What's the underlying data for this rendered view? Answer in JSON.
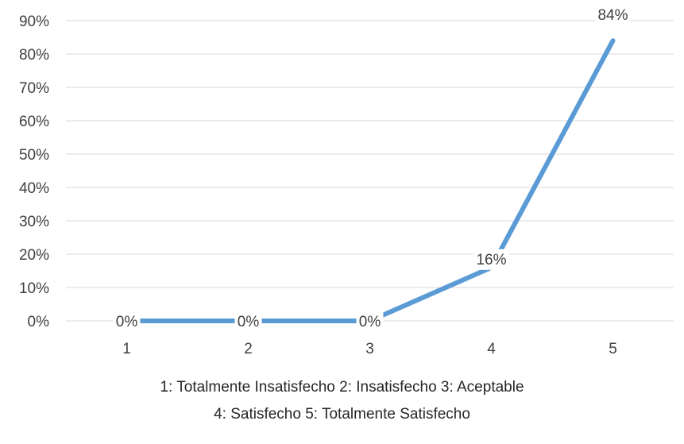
{
  "chart_data": {
    "type": "line",
    "categories": [
      "1",
      "2",
      "3",
      "4",
      "5"
    ],
    "series": [
      {
        "values": [
          0,
          0,
          0,
          16,
          84
        ],
        "labels": [
          "0%",
          "0%",
          "0%",
          "16%",
          "84%"
        ],
        "color": "#5b9bd5"
      }
    ],
    "y_ticks": [
      "0%",
      "10%",
      "20%",
      "30%",
      "40%",
      "50%",
      "60%",
      "70%",
      "80%",
      "90%"
    ],
    "ylim": [
      0,
      90
    ],
    "grid": true,
    "legend_lines": [
      "1: Totalmente Insatisfecho   2: Insatisfecho   3: Aceptable",
      "4: Satisfecho   5: Totalmente Satisfecho"
    ]
  }
}
